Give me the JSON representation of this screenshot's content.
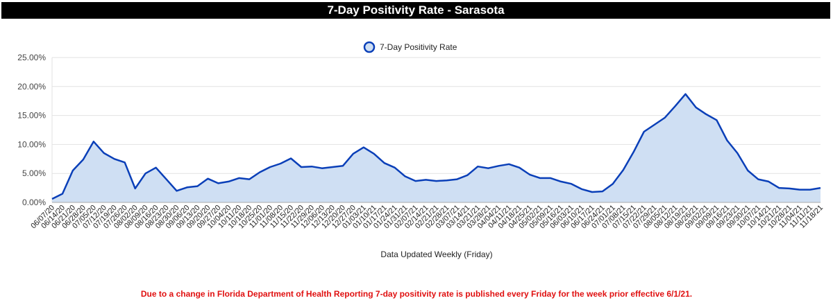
{
  "header": {
    "title": "7-Day Positivity Rate - Sarasota"
  },
  "footnote": "Due to a change in Florida Department of Health Reporting 7-day positivity rate is published every Friday for the week prior effective 6/1/21.",
  "colors": {
    "line": "#0a3fb8",
    "fill": "#cfdff3",
    "grid": "#e2e2e2",
    "title_bg": "#000000",
    "footnote": "#e01010"
  },
  "chart_data": {
    "type": "area",
    "title": "7-Day Positivity Rate - Sarasota",
    "xlabel": "Data Updated Weekly (Friday)",
    "ylabel": "",
    "ylim": [
      0,
      25
    ],
    "y_ticks": [
      "0.00%",
      "5.00%",
      "10.00%",
      "15.00%",
      "20.00%",
      "25.00%"
    ],
    "y_tick_values": [
      0,
      5,
      10,
      15,
      20,
      25
    ],
    "grid": true,
    "legend": {
      "position": "top-center",
      "entries": [
        "7-Day Positivity Rate"
      ]
    },
    "x": [
      "06/07/20",
      "06/14/20",
      "06/21/20",
      "06/28/20",
      "07/05/20",
      "07/12/20",
      "07/19/20",
      "07/26/20",
      "08/02/20",
      "08/09/20",
      "08/16/20",
      "08/23/20",
      "08/30/20",
      "09/06/20",
      "09/13/20",
      "09/20/20",
      "09/27/20",
      "10/04/20",
      "10/11/20",
      "10/18/20",
      "10/25/20",
      "11/01/20",
      "11/08/20",
      "11/15/20",
      "11/22/20",
      "11/29/20",
      "12/06/20",
      "12/13/20",
      "12/20/20",
      "12/27/20",
      "01/03/21",
      "01/10/21",
      "01/17/21",
      "01/24/21",
      "01/31/21",
      "02/07/21",
      "02/14/21",
      "02/21/21",
      "02/28/21",
      "03/07/21",
      "03/14/21",
      "03/21/21",
      "03/28/21",
      "04/04/21",
      "04/11/21",
      "04/18/21",
      "04/25/21",
      "05/02/21",
      "05/09/21",
      "05/16/21",
      "06/03/21",
      "06/10/21",
      "06/17/21",
      "06/24/21",
      "07/01/21",
      "07/08/21",
      "07/15/21",
      "07/22/21",
      "07/29/21",
      "08/05/21",
      "08/12/21",
      "08/19/21",
      "08/26/21",
      "09/02/21",
      "09/09/21",
      "09/16/21",
      "09/23/21",
      "09/30/21",
      "10/07/21",
      "10/14/21",
      "10/21/21",
      "10/28/21",
      "11/04/21",
      "11/11/21",
      "11/18/21"
    ],
    "series": [
      {
        "name": "7-Day Positivity Rate",
        "unit": "%",
        "values": [
          0.6,
          1.5,
          5.5,
          7.4,
          10.5,
          8.5,
          7.5,
          6.9,
          2.4,
          5.0,
          6.0,
          4.0,
          2.0,
          2.6,
          2.8,
          4.1,
          3.3,
          3.6,
          4.2,
          4.0,
          5.2,
          6.1,
          6.7,
          7.6,
          6.1,
          6.2,
          5.9,
          6.1,
          6.3,
          8.4,
          9.5,
          8.4,
          6.8,
          6.0,
          4.5,
          3.7,
          3.9,
          3.7,
          3.8,
          4.0,
          4.7,
          6.2,
          5.9,
          6.3,
          6.6,
          6.0,
          4.8,
          4.2,
          4.2,
          3.6,
          3.2,
          2.3,
          1.8,
          1.9,
          3.2,
          5.6,
          8.7,
          12.2,
          13.4,
          14.6,
          16.6,
          18.7,
          16.4,
          15.2,
          14.2,
          10.7,
          8.5,
          5.5,
          4.0,
          3.6,
          2.5,
          2.4,
          2.2,
          2.2,
          2.5
        ]
      }
    ]
  }
}
